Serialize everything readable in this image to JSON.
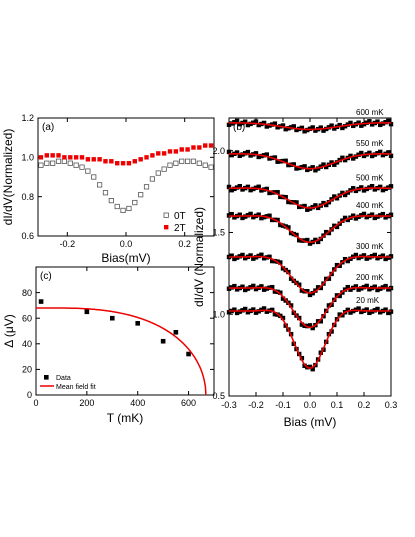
{
  "colors": {
    "black": "#000000",
    "red": "#ee0000",
    "open": "#555555"
  },
  "chart_data": [
    {
      "id": "a",
      "type": "scatter",
      "panel_label": "(a)",
      "xlabel": "Bias(mV)",
      "ylabel": "dI/dV(Normalized)",
      "xlim": [
        -0.3,
        0.3
      ],
      "ylim": [
        0.6,
        1.2
      ],
      "xticks": [
        -0.2,
        0.0,
        0.2
      ],
      "xtick_labels": [
        "-0.2",
        "0.0",
        "0.2"
      ],
      "yticks": [
        0.6,
        0.8,
        1.0,
        1.2
      ],
      "ytick_labels": [
        "0.6",
        "0.8",
        "1.0",
        "1.2"
      ],
      "legend_position": "bottom-right",
      "series": [
        {
          "name": "0T",
          "marker": "open-square",
          "x": [
            -0.29,
            -0.27,
            -0.25,
            -0.23,
            -0.21,
            -0.19,
            -0.17,
            -0.15,
            -0.13,
            -0.11,
            -0.09,
            -0.07,
            -0.05,
            -0.03,
            -0.01,
            0.01,
            0.03,
            0.05,
            0.07,
            0.09,
            0.11,
            0.13,
            0.15,
            0.17,
            0.19,
            0.21,
            0.23,
            0.25,
            0.27,
            0.29
          ],
          "y": [
            0.96,
            0.97,
            0.97,
            0.98,
            0.98,
            0.97,
            0.96,
            0.95,
            0.93,
            0.9,
            0.86,
            0.82,
            0.78,
            0.75,
            0.73,
            0.74,
            0.77,
            0.81,
            0.85,
            0.89,
            0.92,
            0.94,
            0.96,
            0.97,
            0.98,
            0.98,
            0.98,
            0.97,
            0.96,
            0.95
          ]
        },
        {
          "name": "2T",
          "marker": "filled-square",
          "x": [
            -0.29,
            -0.27,
            -0.25,
            -0.23,
            -0.21,
            -0.19,
            -0.17,
            -0.15,
            -0.13,
            -0.11,
            -0.09,
            -0.07,
            -0.05,
            -0.03,
            -0.01,
            0.01,
            0.03,
            0.05,
            0.07,
            0.09,
            0.11,
            0.13,
            0.15,
            0.17,
            0.19,
            0.21,
            0.23,
            0.25,
            0.27,
            0.29
          ],
          "y": [
            1.0,
            1.01,
            1.01,
            1.01,
            1.0,
            1.0,
            1.0,
            1.0,
            0.99,
            0.99,
            0.99,
            0.98,
            0.98,
            0.97,
            0.97,
            0.97,
            0.98,
            0.99,
            1.0,
            1.01,
            1.02,
            1.02,
            1.03,
            1.03,
            1.04,
            1.04,
            1.05,
            1.05,
            1.06,
            1.06
          ]
        }
      ]
    },
    {
      "id": "c",
      "type": "scatter",
      "panel_label": "(c)",
      "xlabel": "T (mK)",
      "ylabel": "Δ (μV)",
      "xlim": [
        0,
        700
      ],
      "ylim": [
        0,
        100
      ],
      "xticks": [
        0,
        200,
        400,
        600
      ],
      "xtick_labels": [
        "0",
        "200",
        "400",
        "600"
      ],
      "yticks": [
        0,
        20,
        40,
        60,
        80
      ],
      "ytick_labels": [
        "0",
        "20",
        "40",
        "60",
        "80"
      ],
      "legend_position": "bottom-left",
      "series": [
        {
          "name": "Data",
          "marker": "filled-square",
          "x": [
            20,
            200,
            300,
            400,
            500,
            550,
            600
          ],
          "y": [
            73,
            65,
            60,
            56,
            42,
            49,
            32
          ]
        },
        {
          "name": "Mean field fit",
          "marker": "line",
          "Delta0": 68,
          "Tc": 668
        }
      ]
    },
    {
      "id": "b",
      "type": "line",
      "panel_label": "(b)",
      "xlabel": "Bias (mV)",
      "ylabel": "dI/dV (Normalized)",
      "xlim": [
        -0.3,
        0.3
      ],
      "ylim": [
        0.5,
        2.2
      ],
      "xticks": [
        -0.3,
        -0.2,
        -0.1,
        0.0,
        0.1,
        0.2,
        0.3
      ],
      "xtick_labels": [
        "-0.3",
        "-0.2",
        "-0.1",
        "0.0",
        "0.1",
        "0.2",
        "0.3"
      ],
      "yticks": [
        0.5,
        1.0,
        1.5,
        2.0
      ],
      "ytick_labels": [
        "0.5",
        "1.0",
        "1.5",
        "2.0"
      ],
      "series": [
        {
          "name": "600 mK",
          "baseline": 2.17,
          "dip_depth": 0.04,
          "width": 0.1
        },
        {
          "name": "550 mK",
          "baseline": 1.98,
          "dip_depth": 0.09,
          "width": 0.09
        },
        {
          "name": "500 mK",
          "baseline": 1.77,
          "dip_depth": 0.12,
          "width": 0.08
        },
        {
          "name": "400 mK",
          "baseline": 1.6,
          "dip_depth": 0.16,
          "width": 0.07
        },
        {
          "name": "300 mK",
          "baseline": 1.35,
          "dip_depth": 0.22,
          "width": 0.065
        },
        {
          "name": "200 mK",
          "baseline": 1.16,
          "dip_depth": 0.24,
          "width": 0.06
        },
        {
          "name": "20 mK",
          "baseline": 1.02,
          "dip_depth": 0.35,
          "width": 0.055
        }
      ]
    }
  ]
}
